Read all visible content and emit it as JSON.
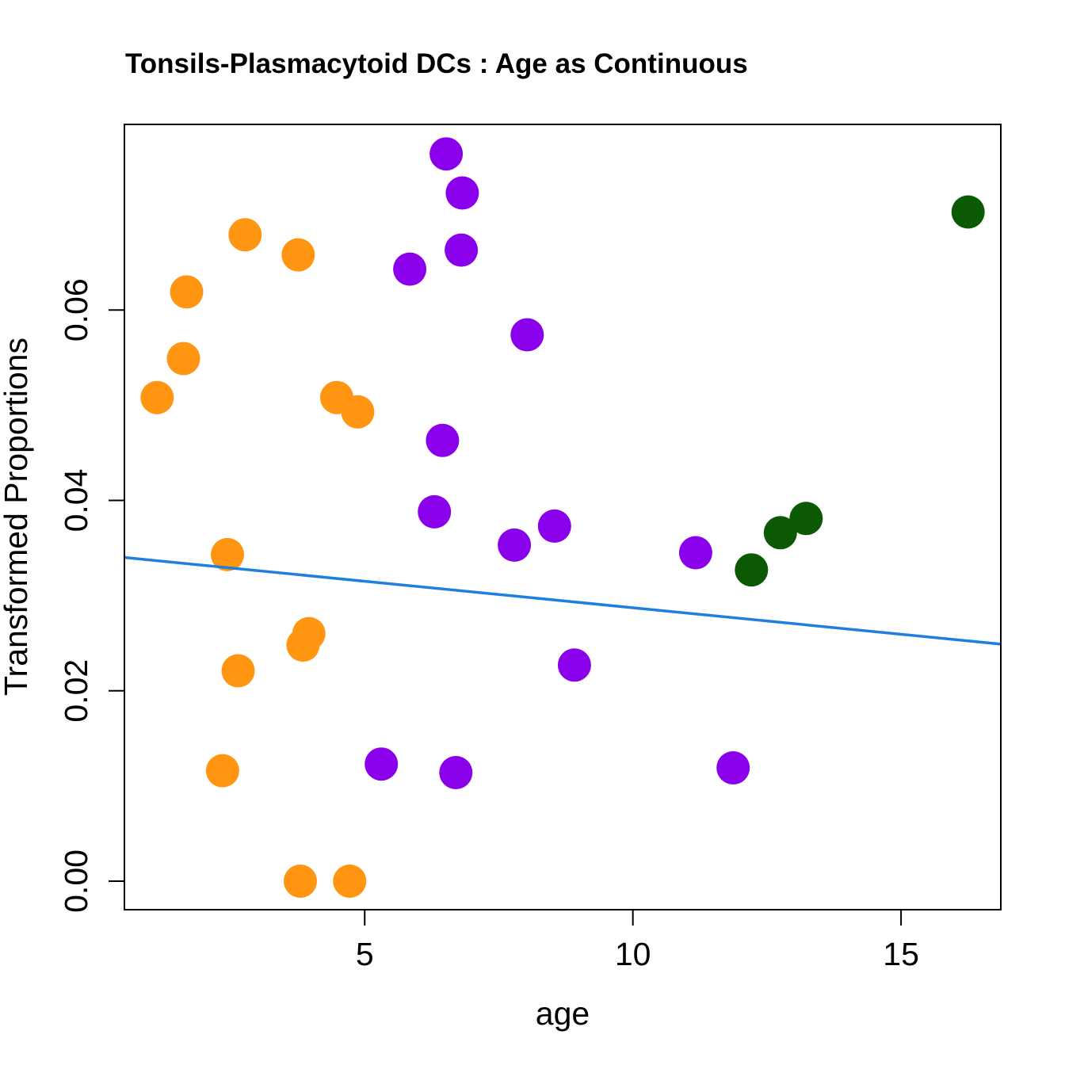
{
  "chart_data": {
    "type": "scatter",
    "title": "Tonsils-Plasmacytoid DCs : Age as Continuous",
    "xlabel": "age",
    "ylabel": "Transformed Proportions",
    "xlim": [
      0.52,
      16.86
    ],
    "ylim": [
      -0.003,
      0.0795
    ],
    "xticks": [
      5,
      10,
      15
    ],
    "xtick_labels": [
      "5",
      "10",
      "15"
    ],
    "yticks": [
      0.0,
      0.02,
      0.04,
      0.06
    ],
    "ytick_labels": [
      "0.00",
      "0.02",
      "0.04",
      "0.06"
    ],
    "grid": false,
    "legend": "none",
    "series": [
      {
        "name": "orange-group",
        "color": "#FF9510",
        "points": [
          [
            1.13,
            0.0508
          ],
          [
            1.62,
            0.0549
          ],
          [
            1.68,
            0.0619
          ],
          [
            2.77,
            0.0679
          ],
          [
            3.76,
            0.0658
          ],
          [
            4.48,
            0.0508
          ],
          [
            4.87,
            0.0493
          ],
          [
            2.44,
            0.0343
          ],
          [
            3.96,
            0.026
          ],
          [
            3.85,
            0.0248
          ],
          [
            2.64,
            0.0221
          ],
          [
            2.35,
            0.0116
          ],
          [
            3.8,
            0.0
          ],
          [
            4.72,
            0.0
          ]
        ]
      },
      {
        "name": "purple-group",
        "color": "#8B00EB",
        "points": [
          [
            6.52,
            0.0764
          ],
          [
            6.82,
            0.0723
          ],
          [
            6.8,
            0.0663
          ],
          [
            5.84,
            0.0643
          ],
          [
            8.03,
            0.0574
          ],
          [
            6.45,
            0.0463
          ],
          [
            6.3,
            0.0388
          ],
          [
            7.79,
            0.0353
          ],
          [
            8.54,
            0.0373
          ],
          [
            11.17,
            0.0345
          ],
          [
            8.91,
            0.0227
          ],
          [
            5.31,
            0.0123
          ],
          [
            6.7,
            0.0114
          ],
          [
            11.87,
            0.0119
          ]
        ]
      },
      {
        "name": "green-group",
        "color": "#0B5A03",
        "points": [
          [
            12.21,
            0.0327
          ],
          [
            12.75,
            0.0366
          ],
          [
            13.23,
            0.0381
          ],
          [
            16.25,
            0.0703
          ]
        ]
      }
    ],
    "regression_line": {
      "color": "#1E7FE0",
      "x": [
        0.52,
        16.86
      ],
      "y": [
        0.034,
        0.0249
      ]
    }
  }
}
